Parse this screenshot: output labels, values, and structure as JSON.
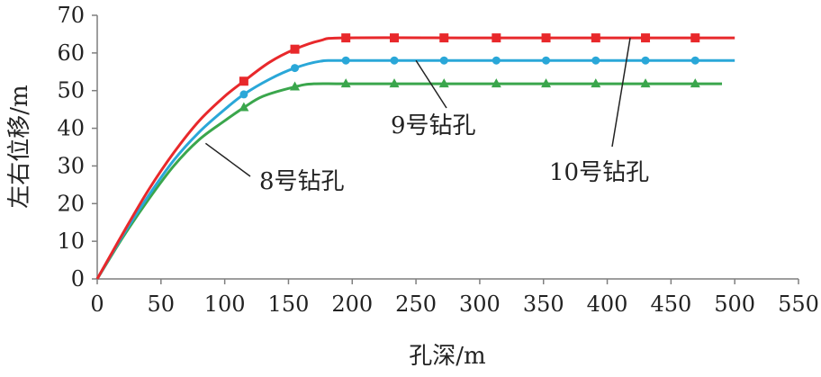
{
  "chart_data": {
    "type": "line",
    "xlabel": "孔深/m",
    "ylabel": "左右位移/m",
    "xlim": [
      0,
      550
    ],
    "ylim": [
      0,
      70
    ],
    "x_ticks": [
      0,
      50,
      100,
      150,
      200,
      250,
      300,
      350,
      400,
      450,
      500,
      550
    ],
    "y_ticks": [
      0,
      10,
      20,
      30,
      40,
      50,
      60,
      70
    ],
    "grid": false,
    "legend": "none",
    "series": [
      {
        "name": "8号钻孔",
        "color": "#3aa64c",
        "marker": "triangle",
        "x": [
          0,
          20,
          40,
          60,
          80,
          100,
          115,
          130,
          155,
          170,
          200,
          300,
          400,
          490
        ],
        "y": [
          0,
          11,
          21,
          30,
          37,
          42,
          45.5,
          48.5,
          51,
          51.8,
          51.8,
          51.8,
          51.8,
          51.8
        ],
        "markers_x": [
          115,
          155,
          195,
          233,
          272,
          313,
          352,
          391,
          430,
          469
        ],
        "markers_y": [
          45.5,
          51,
          51.8,
          51.8,
          51.8,
          51.8,
          51.8,
          51.8,
          51.8,
          51.8
        ]
      },
      {
        "name": "9号钻孔",
        "color": "#2aa7d8",
        "marker": "circle",
        "x": [
          0,
          20,
          40,
          60,
          80,
          100,
          115,
          135,
          155,
          175,
          195,
          300,
          400,
          500
        ],
        "y": [
          0,
          11.5,
          22,
          31.5,
          39,
          45,
          49,
          53,
          56,
          57.8,
          58,
          58,
          58,
          58
        ],
        "markers_x": [
          115,
          155,
          195,
          233,
          272,
          313,
          352,
          391,
          430,
          469
        ],
        "markers_y": [
          49,
          56,
          58,
          58,
          58,
          58,
          58,
          58,
          58,
          58
        ]
      },
      {
        "name": "10号钻孔",
        "color": "#e8282b",
        "marker": "square",
        "x": [
          0,
          20,
          40,
          60,
          80,
          100,
          115,
          135,
          155,
          175,
          195,
          300,
          400,
          500
        ],
        "y": [
          0,
          12,
          23.5,
          33.5,
          42,
          48.5,
          52.5,
          57.5,
          61,
          63.3,
          64,
          64,
          64,
          64
        ],
        "markers_x": [
          115,
          155,
          195,
          233,
          272,
          313,
          352,
          391,
          430,
          469
        ],
        "markers_y": [
          52.5,
          61,
          64,
          64,
          64,
          64,
          64,
          64,
          64,
          64
        ]
      }
    ],
    "annotations": [
      {
        "series": "8号钻孔",
        "text": "8号钻孔",
        "point_x": 85,
        "point_y": 36
      },
      {
        "series": "9号钻孔",
        "text": "9号钻孔",
        "point_x": 250,
        "point_y": 58
      },
      {
        "series": "10号钻孔",
        "text": "10号钻孔",
        "point_x": 418,
        "point_y": 64
      }
    ]
  }
}
